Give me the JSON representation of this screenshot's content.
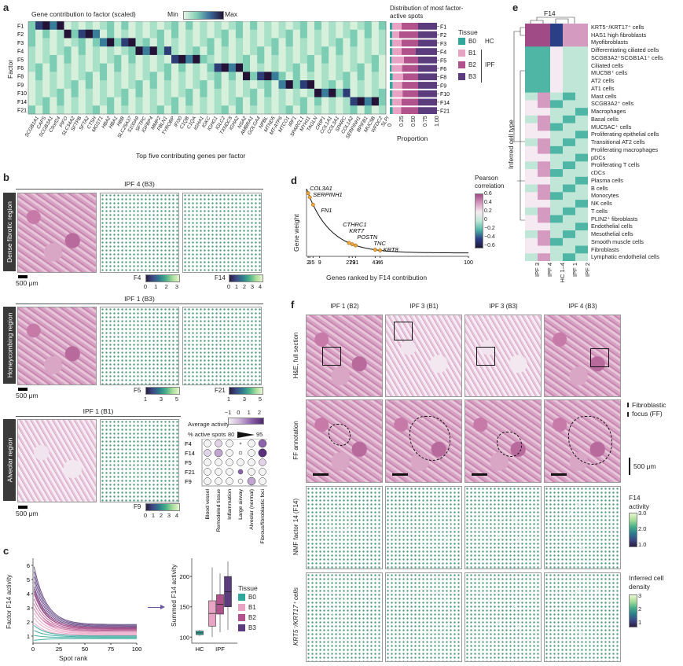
{
  "panel_labels": {
    "a": "a",
    "b": "b",
    "c": "c",
    "d": "d",
    "e": "e",
    "f": "f"
  },
  "colors": {
    "B0": "#2fa89b",
    "B1": "#e8a3c4",
    "B2": "#b2528c",
    "B3": "#5b3d7d",
    "heat_min": "#e6f5e4",
    "heat_mid": "#7ccdb4",
    "heat_max": "#241336"
  },
  "panel_a": {
    "title": "Gene contribution to factor (scaled)",
    "min_label": "Min",
    "max_label": "Max",
    "ylabel": "Factor",
    "xlabel": "Top five contributing genes per factor",
    "factors": [
      "F1",
      "F2",
      "F3",
      "F4",
      "F5",
      "F6",
      "F8",
      "F9",
      "F10",
      "F14",
      "F21"
    ],
    "genes": [
      "SCGB1A1",
      "CAPS",
      "SCGB3A1",
      "C9orf24",
      "PIFO",
      "SLC34A2",
      "SFTPB",
      "SFTA2",
      "CTSH",
      "MGST1",
      "HBA2",
      "HBA1",
      "HBB",
      "SLC25A37",
      "S100A9",
      "SFTPC",
      "IGFBP4",
      "MMP2",
      "FBLN1",
      "TYROBP",
      "IFI30",
      "C1QB",
      "C1QA",
      "IGHA1",
      "IGKC",
      "IGHG1",
      "IGLC2",
      "TXNDC5",
      "IGHA2",
      "NSA2",
      "AMBRA1",
      "GOLGA4",
      "NPBL",
      "MTND5",
      "MT-ATP6",
      "MTCO1",
      "IRF1",
      "SPARCL1",
      "MYH11",
      "TAGLN",
      "CRIP1",
      "COL1A1",
      "COL3A1",
      "SPARC",
      "COL1A2",
      "SERPINH1",
      "BPIFB1",
      "MUC5B",
      "WFDC2",
      "SLPI"
    ],
    "prop_title": "Distribution of most factor-active spots",
    "prop_xlabel": "Proportion",
    "prop_ticks": [
      "0",
      "0.25",
      "0.50",
      "0.75",
      "1.00"
    ],
    "legend_title": "Tissue",
    "legend": [
      {
        "k": "B0",
        "note": "HC"
      },
      {
        "k": "B1",
        "note": ""
      },
      {
        "k": "B2",
        "note": "IPF"
      },
      {
        "k": "B3",
        "note": ""
      }
    ]
  },
  "panel_b": {
    "rows": [
      {
        "title": "IPF 4 (B3)",
        "region": "Dense fibrotic region",
        "cb": [
          {
            "name": "F4",
            "ticks": [
              "0",
              "1",
              "2",
              "3"
            ]
          },
          {
            "name": "F14",
            "ticks": [
              "0",
              "1",
              "2",
              "3",
              "4"
            ]
          }
        ]
      },
      {
        "title": "IPF 1 (B3)",
        "region": "Honeycombing region",
        "cb": [
          {
            "name": "F5",
            "ticks": [
              "1",
              "3",
              "5"
            ]
          },
          {
            "name": "F21",
            "ticks": [
              "1",
              "3",
              "5"
            ]
          }
        ]
      },
      {
        "title": "IPF 1 (B1)",
        "region": "Alveolar region",
        "cb": [
          {
            "name": "F9",
            "ticks": [
              "0",
              "1",
              "2",
              "3",
              "4"
            ]
          }
        ]
      }
    ],
    "scale": "500 μm",
    "dot_legend": {
      "activity_title": "Average activity",
      "activity_ticks": [
        "−1",
        "0",
        "1",
        "2"
      ],
      "pct_title": "% active spots",
      "pct_min": "80",
      "pct_max": "95"
    },
    "dot_rows": [
      "F4",
      "F14",
      "F5",
      "F21",
      "F9"
    ],
    "dot_cols": [
      "Blood vessel",
      "Remodeled tissue",
      "Inflammation",
      "Large airway",
      "Alveolar (normal)",
      "Fibrous/fibroblastic foci"
    ]
  },
  "panel_c": {
    "ylabel": "Factor F14 activity",
    "xlabel": "Spot rank",
    "yticks": [
      "1",
      "2",
      "3",
      "4",
      "5",
      "6"
    ],
    "xticks": [
      "0",
      "25",
      "50",
      "75",
      "100"
    ],
    "box_ylabel": "Summed F14 activity",
    "box_yticks": [
      "100",
      "150",
      "200"
    ],
    "box_x": [
      "HC",
      "IPF"
    ],
    "legend_title": "Tissue",
    "legend": [
      "B0",
      "B1",
      "B2",
      "B3"
    ]
  },
  "panel_d": {
    "ylabel": "Gene weight",
    "xlabel": "Genes ranked by F14 contribution",
    "xticks": [
      "2",
      "3",
      "5",
      "9",
      "27",
      "29",
      "31",
      "43",
      "46",
      "100"
    ],
    "genes": [
      "COL3A1",
      "SERPINH1",
      "FN1",
      "CTHRC1",
      "KRT7",
      "POSTN",
      "TNC",
      "KRT8"
    ]
  },
  "panel_e": {
    "title": "F14",
    "ylabel": "Inferred cell type",
    "legend_title": "Pearson correlation",
    "legend_ticks": [
      "0.6",
      "0.4",
      "0.2",
      "0",
      "−0.2",
      "−0.4",
      "−0.6"
    ],
    "cols": [
      "IPF 3",
      "IPF 4",
      "HC 1–4",
      "IPF 1",
      "IPF 2"
    ],
    "cells": [
      "KRT5⁻/KRT17⁺ cells",
      "HAS1 high fibroblasts",
      "Myofibroblasts",
      "Differentiating ciliated cells",
      "SCGB3A2⁺SCGB1A1⁺ cells",
      "Ciliated cells",
      "MUC5B⁺ cells",
      "AT2 cells",
      "AT1 cells",
      "Mast cells",
      "SCGB3A2⁺ cells",
      "Macrophages",
      "Basal cells",
      "MUC5AC⁺ cells",
      "Proliferating epithelial cells",
      "Transitional AT2 cells",
      "Proliferating macrophages",
      "pDCs",
      "Proliferating T cells",
      "cDCs",
      "Plasma cells",
      "B cells",
      "Monocytes",
      "NK cells",
      "T cells",
      "PLIN2⁺ fibroblasts",
      "Endothelial cells",
      "Mesothelial cells",
      "Smooth muscle cells",
      "Fibroblasts",
      "Lymphatic endothelial cells"
    ]
  },
  "panel_f": {
    "cols": [
      "IPF 1 (B2)",
      "IPF 3 (B1)",
      "IPF 3 (B3)",
      "IPF 4 (B3)"
    ],
    "rows": [
      "H&E, full section",
      "FF annotation",
      "NMF factor 14 (F14)",
      "KRT5⁻/KRT17⁺ cells"
    ],
    "ff_legend": "Fibroblastic focus (FF)",
    "scale": "500 μm",
    "f14_title": "F14 activity",
    "f14_ticks": [
      "3.0",
      "2.0",
      "1.0"
    ],
    "dens_title": "Inferred cell density",
    "dens_ticks": [
      "3",
      "2",
      "1"
    ]
  }
}
